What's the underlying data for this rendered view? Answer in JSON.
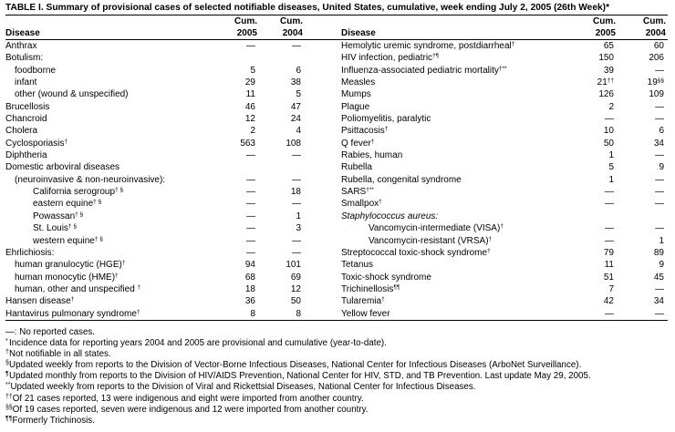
{
  "title": "TABLE I. Summary of provisional cases of selected notifiable diseases, United States, cumulative, week ending July 2, 2005 (26th Week)*",
  "headers": {
    "left": {
      "disease": "Disease",
      "cols": [
        {
          "cum": "Cum.",
          "year": "2005"
        },
        {
          "cum": "Cum.",
          "year": "2004"
        }
      ]
    },
    "right": {
      "disease": "Disease",
      "cols": [
        {
          "cum": "Cum.",
          "year": "2005"
        },
        {
          "cum": "Cum.",
          "year": "2004"
        }
      ]
    }
  },
  "table": {
    "left": [
      {
        "disease": "Anthrax",
        "y2005": "—",
        "y2004": "—"
      },
      {
        "disease": "Botulism:",
        "sub": [
          {
            "disease": "foodborne",
            "y2005": 5,
            "y2004": 6
          },
          {
            "disease": "infant",
            "y2005": 29,
            "y2004": 38
          },
          {
            "disease": "other (wound & unspecified)",
            "y2005": 11,
            "y2004": 5
          }
        ]
      },
      {
        "disease": "Brucellosis",
        "y2005": 46,
        "y2004": 47
      },
      {
        "disease": "Chancroid",
        "y2005": 12,
        "y2004": 24
      },
      {
        "disease": "Cholera",
        "y2005": 2,
        "y2004": 4
      },
      {
        "disease": "Cyclosporiasis",
        "sup": "†",
        "y2005": 563,
        "y2004": 108
      },
      {
        "disease": "Diphtheria",
        "y2005": "—",
        "y2004": "—"
      },
      {
        "disease": "Domestic arboviral diseases",
        "sub": [
          {
            "disease": "(neuroinvasive & non-neuroinvasive):",
            "y2005": "—",
            "y2004": "—",
            "sub": [
              {
                "disease": "California serogroup",
                "sup": "† §",
                "y2005": "—",
                "y2004": 18
              },
              {
                "disease": "eastern equine",
                "sup": "† §",
                "y2005": "—",
                "y2004": "—"
              },
              {
                "disease": "Powassan",
                "sup": "† §",
                "y2005": "—",
                "y2004": 1
              },
              {
                "disease": "St. Louis",
                "sup": "† §",
                "y2005": "—",
                "y2004": 3
              },
              {
                "disease": "western equine",
                "sup": "† §",
                "y2005": "—",
                "y2004": "—"
              }
            ]
          }
        ]
      },
      {
        "disease": "Ehrlichiosis:",
        "y2005": "—",
        "y2004": "—",
        "sub": [
          {
            "disease": "human granulocytic (HGE)",
            "sup": "†",
            "y2005": 94,
            "y2004": 101
          },
          {
            "disease": "human monocytic (HME)",
            "sup": "†",
            "y2005": 68,
            "y2004": 69
          },
          {
            "disease": "human, other and unspecified ",
            "sup": "†",
            "y2005": 18,
            "y2004": 12
          }
        ]
      },
      {
        "disease": "Hansen disease",
        "sup": "†",
        "y2005": 36,
        "y2004": 50
      },
      {
        "disease": "Hantavirus pulmonary syndrome",
        "sup": "†",
        "y2005": 8,
        "y2004": 8
      }
    ],
    "right": [
      {
        "disease": "Hemolytic uremic syndrome, postdiarrheal",
        "sup": "†",
        "y2005": 65,
        "y2004": 60
      },
      {
        "disease": "HIV infection, pediatric",
        "sup": "†¶",
        "y2005": 150,
        "y2004": 206
      },
      {
        "disease": "Influenza-associated pediatric mortality",
        "sup": "†**",
        "y2005": 39,
        "y2004": "—"
      },
      {
        "disease": "Measles",
        "y2005": 21,
        "y2005_sup": "††",
        "y2004": 19,
        "y2004_sup": "§§"
      },
      {
        "disease": "Mumps",
        "y2005": 126,
        "y2004": 109
      },
      {
        "disease": "Plague",
        "y2005": 2,
        "y2004": "—"
      },
      {
        "disease": "Poliomyelitis, paralytic",
        "y2005": "—",
        "y2004": "—"
      },
      {
        "disease": "Psittacosis",
        "sup": "†",
        "y2005": 10,
        "y2004": 6
      },
      {
        "disease": "Q fever",
        "sup": "†",
        "y2005": 50,
        "y2004": 34
      },
      {
        "disease": "Rabies, human",
        "y2005": 1,
        "y2004": "—"
      },
      {
        "disease": "Rubella",
        "y2005": 5,
        "y2004": 9
      },
      {
        "disease": "Rubella, congenital syndrome",
        "y2005": 1,
        "y2004": "—"
      },
      {
        "disease": "SARS",
        "sup": "†**",
        "y2005": "—",
        "y2004": "—"
      },
      {
        "disease": "Smallpox",
        "sup": "†",
        "y2005": "—",
        "y2004": "—"
      },
      {
        "disease": "Staphylococcus aureus:",
        "italic": true,
        "sub": [
          {
            "disease": "Vancomycin-intermediate (VISA)",
            "sup": "†",
            "y2005": "—",
            "y2004": "—"
          },
          {
            "disease": "Vancomycin-resistant (VRSA)",
            "sup": "†",
            "y2005": "—",
            "y2004": 1
          }
        ]
      },
      {
        "disease": "Streptococcal toxic-shock syndrome",
        "sup": "†",
        "y2005": 79,
        "y2004": 89
      },
      {
        "disease": "Tetanus",
        "y2005": 11,
        "y2004": 9
      },
      {
        "disease": "Toxic-shock syndrome",
        "y2005": 51,
        "y2004": 45
      },
      {
        "disease": "Trichinellosis",
        "sup": "¶¶",
        "y2005": 7,
        "y2004": "—"
      },
      {
        "disease": "Tularemia",
        "sup": "†",
        "y2005": 42,
        "y2004": 34
      },
      {
        "disease": "Yellow fever",
        "y2005": "—",
        "y2004": "—"
      }
    ]
  },
  "footnotes": [
    {
      "mark": "—:",
      "text": " No reported cases."
    },
    {
      "mark": "*",
      "text": "Incidence data for reporting years 2004 and 2005 are provisional and cumulative (year-to-date)."
    },
    {
      "mark": "†",
      "text": "Not notifiable in all states."
    },
    {
      "mark": "§",
      "text": "Updated weekly from reports to the Division of Vector-Borne Infectious Diseases, National Center for Infectious Diseases (ArboNet Surveillance)."
    },
    {
      "mark": "¶",
      "text": "Updated monthly from reports to the Division of HIV/AIDS Prevention, National Center for HIV, STD, and TB Prevention. Last update May 29, 2005."
    },
    {
      "mark": "**",
      "text": "Updated weekly from reports to the Division of Viral and Rickettsial Diseases, National Center for Infectious Diseases."
    },
    {
      "mark": "††",
      "text": "Of 21 cases reported, 13 were indigenous and eight were imported from another country."
    },
    {
      "mark": "§§",
      "text": "Of 19 cases reported, seven were indigenous and 12 were imported from another country."
    },
    {
      "mark": "¶¶",
      "text": "Formerly Trichinosis."
    }
  ]
}
